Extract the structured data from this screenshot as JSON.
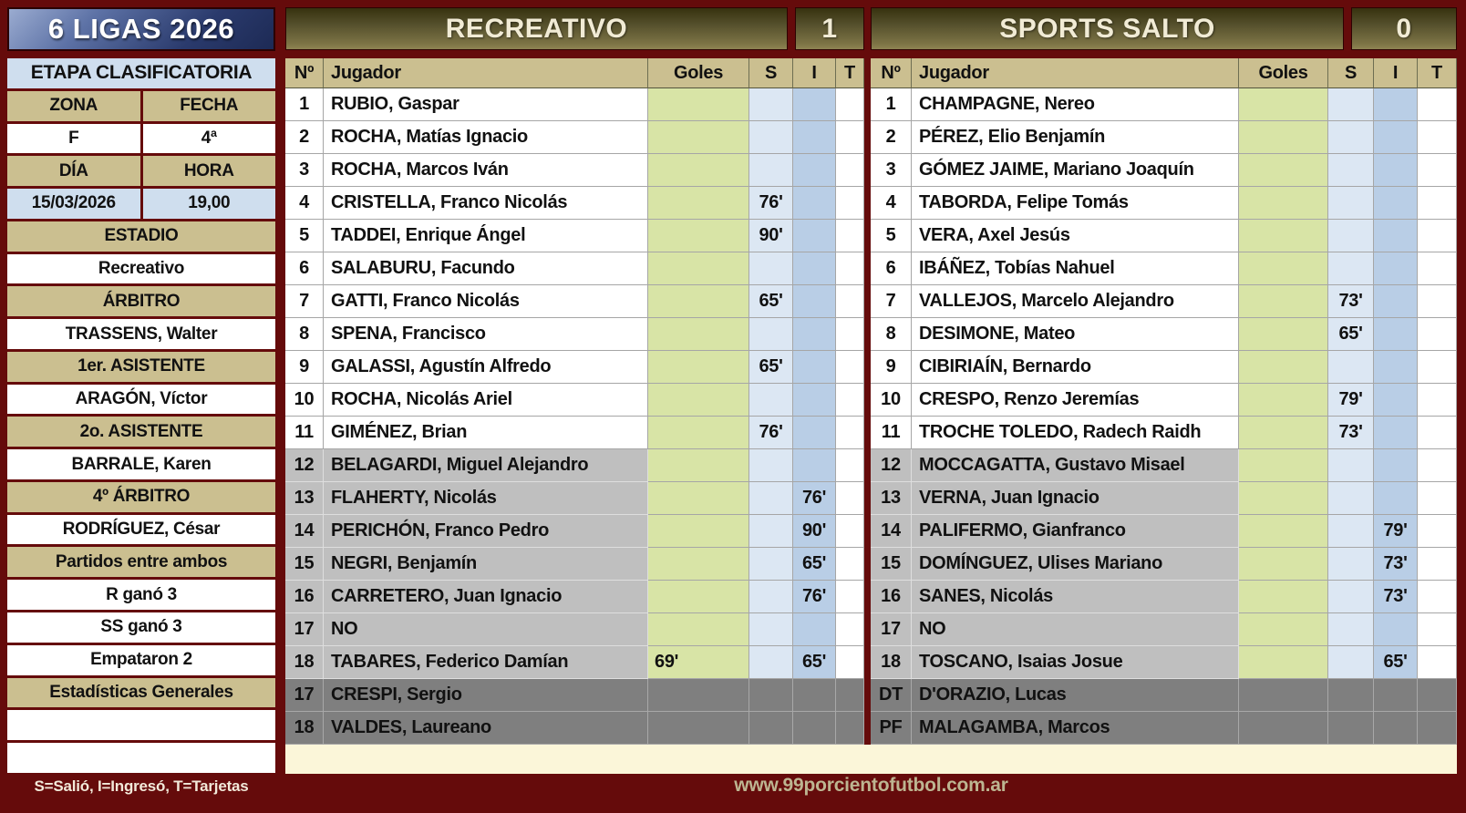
{
  "sidebar": {
    "title": "6 LIGAS 2026",
    "stage": "ETAPA CLASIFICATORIA",
    "grid": {
      "zona_label": "ZONA",
      "fecha_label": "FECHA",
      "zona_value": "F",
      "fecha_value": "4ª",
      "dia_label": "DÍA",
      "hora_label": "HORA",
      "dia_value": "15/03/2026",
      "hora_value": "19,00"
    },
    "officials": [
      {
        "label": "ESTADIO",
        "value": "Recreativo"
      },
      {
        "label": "ÁRBITRO",
        "value": "TRASSENS, Walter"
      },
      {
        "label": "1er. ASISTENTE",
        "value": "ARAGÓN, Víctor"
      },
      {
        "label": "2o. ASISTENTE",
        "value": "BARRALE, Karen"
      },
      {
        "label": "4º ÁRBITRO",
        "value": "RODRÍGUEZ, César"
      }
    ],
    "head_to_head": {
      "label": "Partidos entre ambos",
      "rows": [
        "R ganó 3",
        "SS ganó 3",
        "Empataron 2"
      ]
    },
    "stats_label": "Estadísticas Generales",
    "legend": "S=Salió, I=Ingresó, T=Tarjetas"
  },
  "teams": [
    {
      "name": "RECREATIVO",
      "score": "1",
      "columns": [
        "Nº",
        "Jugador",
        "Goles",
        "S",
        "I",
        "T"
      ],
      "players": [
        {
          "num": "1",
          "name": "RUBIO, Gaspar",
          "goles": "",
          "s": "",
          "i": "",
          "t": "",
          "sub": false
        },
        {
          "num": "2",
          "name": "ROCHA, Matías Ignacio",
          "goles": "",
          "s": "",
          "i": "",
          "t": "",
          "sub": false
        },
        {
          "num": "3",
          "name": "ROCHA, Marcos Iván",
          "goles": "",
          "s": "",
          "i": "",
          "t": "",
          "sub": false
        },
        {
          "num": "4",
          "name": "CRISTELLA, Franco Nicolás",
          "goles": "",
          "s": "76'",
          "i": "",
          "t": "",
          "sub": false
        },
        {
          "num": "5",
          "name": "TADDEI, Enrique Ángel",
          "goles": "",
          "s": "90'",
          "i": "",
          "t": "",
          "sub": false
        },
        {
          "num": "6",
          "name": "SALABURU, Facundo",
          "goles": "",
          "s": "",
          "i": "",
          "t": "",
          "sub": false
        },
        {
          "num": "7",
          "name": "GATTI, Franco Nicolás",
          "goles": "",
          "s": "65'",
          "i": "",
          "t": "",
          "sub": false
        },
        {
          "num": "8",
          "name": "SPENA, Francisco",
          "goles": "",
          "s": "",
          "i": "",
          "t": "",
          "sub": false
        },
        {
          "num": "9",
          "name": "GALASSI, Agustín Alfredo",
          "goles": "",
          "s": "65'",
          "i": "",
          "t": "",
          "sub": false
        },
        {
          "num": "10",
          "name": "ROCHA, Nicolás Ariel",
          "goles": "",
          "s": "",
          "i": "",
          "t": "",
          "sub": false
        },
        {
          "num": "11",
          "name": "GIMÉNEZ, Brian",
          "goles": "",
          "s": "76'",
          "i": "",
          "t": "",
          "sub": false
        },
        {
          "num": "12",
          "name": "BELAGARDI, Miguel Alejandro",
          "goles": "",
          "s": "",
          "i": "",
          "t": "",
          "sub": true
        },
        {
          "num": "13",
          "name": "FLAHERTY, Nicolás",
          "goles": "",
          "s": "",
          "i": "76'",
          "t": "",
          "sub": true
        },
        {
          "num": "14",
          "name": "PERICHÓN, Franco Pedro",
          "goles": "",
          "s": "",
          "i": "90'",
          "t": "",
          "sub": true
        },
        {
          "num": "15",
          "name": "NEGRI, Benjamín",
          "goles": "",
          "s": "",
          "i": "65'",
          "t": "",
          "sub": true
        },
        {
          "num": "16",
          "name": "CARRETERO, Juan Ignacio",
          "goles": "",
          "s": "",
          "i": "76'",
          "t": "",
          "sub": true
        },
        {
          "num": "17",
          "name": "NO",
          "goles": "",
          "s": "",
          "i": "",
          "t": "",
          "sub": true
        },
        {
          "num": "18",
          "name": "TABARES, Federico Damían",
          "goles": "69'",
          "s": "",
          "i": "65'",
          "t": "",
          "sub": true
        }
      ],
      "staff": [
        {
          "num": "17",
          "name": "CRESPI, Sergio"
        },
        {
          "num": "18",
          "name": "VALDES, Laureano"
        }
      ]
    },
    {
      "name": "SPORTS SALTO",
      "score": "0",
      "columns": [
        "Nº",
        "Jugador",
        "Goles",
        "S",
        "I",
        "T"
      ],
      "players": [
        {
          "num": "1",
          "name": "CHAMPAGNE, Nereo",
          "goles": "",
          "s": "",
          "i": "",
          "t": "",
          "sub": false
        },
        {
          "num": "2",
          "name": "PÉREZ, Elio Benjamín",
          "goles": "",
          "s": "",
          "i": "",
          "t": "",
          "sub": false
        },
        {
          "num": "3",
          "name": "GÓMEZ JAIME, Mariano Joaquín",
          "goles": "",
          "s": "",
          "i": "",
          "t": "",
          "sub": false
        },
        {
          "num": "4",
          "name": "TABORDA, Felipe Tomás",
          "goles": "",
          "s": "",
          "i": "",
          "t": "",
          "sub": false
        },
        {
          "num": "5",
          "name": "VERA, Axel Jesús",
          "goles": "",
          "s": "",
          "i": "",
          "t": "",
          "sub": false
        },
        {
          "num": "6",
          "name": "IBÁÑEZ, Tobías Nahuel",
          "goles": "",
          "s": "",
          "i": "",
          "t": "",
          "sub": false
        },
        {
          "num": "7",
          "name": "VALLEJOS, Marcelo Alejandro",
          "goles": "",
          "s": "73'",
          "i": "",
          "t": "",
          "sub": false
        },
        {
          "num": "8",
          "name": "DESIMONE, Mateo",
          "goles": "",
          "s": "65'",
          "i": "",
          "t": "",
          "sub": false
        },
        {
          "num": "9",
          "name": "CIBIRIAÍN, Bernardo",
          "goles": "",
          "s": "",
          "i": "",
          "t": "",
          "sub": false
        },
        {
          "num": "10",
          "name": "CRESPO, Renzo Jeremías",
          "goles": "",
          "s": "79'",
          "i": "",
          "t": "",
          "sub": false
        },
        {
          "num": "11",
          "name": "TROCHE TOLEDO, Radech Raidh",
          "goles": "",
          "s": "73'",
          "i": "",
          "t": "",
          "sub": false
        },
        {
          "num": "12",
          "name": "MOCCAGATTA, Gustavo Misael",
          "goles": "",
          "s": "",
          "i": "",
          "t": "",
          "sub": true
        },
        {
          "num": "13",
          "name": "VERNA, Juan Ignacio",
          "goles": "",
          "s": "",
          "i": "",
          "t": "",
          "sub": true
        },
        {
          "num": "14",
          "name": "PALIFERMO, Gianfranco",
          "goles": "",
          "s": "",
          "i": "79'",
          "t": "",
          "sub": true
        },
        {
          "num": "15",
          "name": "DOMÍNGUEZ, Ulises Mariano",
          "goles": "",
          "s": "",
          "i": "73'",
          "t": "",
          "sub": true
        },
        {
          "num": "16",
          "name": "SANES, Nicolás",
          "goles": "",
          "s": "",
          "i": "73'",
          "t": "",
          "sub": true
        },
        {
          "num": "17",
          "name": "NO",
          "goles": "",
          "s": "",
          "i": "",
          "t": "",
          "sub": true
        },
        {
          "num": "18",
          "name": "TOSCANO, Isaias Josue",
          "goles": "",
          "s": "",
          "i": "65'",
          "t": "",
          "sub": true
        }
      ],
      "staff": [
        {
          "num": "DT",
          "name": "D'ORAZIO, Lucas"
        },
        {
          "num": "PF",
          "name": "MALAGAMBA, Marcos"
        }
      ]
    }
  ],
  "footer": {
    "website": "www.99porcientofutbol.com.ar"
  }
}
